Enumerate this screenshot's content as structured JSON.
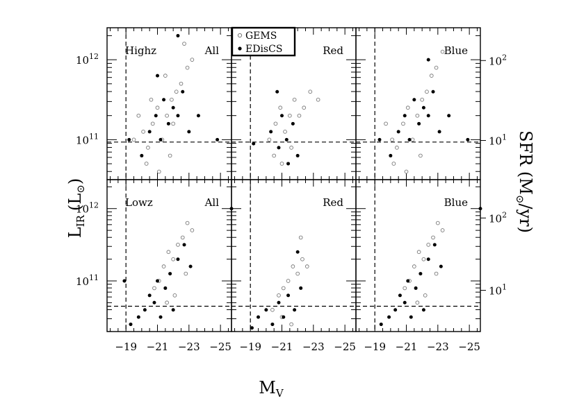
{
  "figure": {
    "xlabel_main": "M",
    "xlabel_sub": "V",
    "ylabel_left_main": "L",
    "ylabel_left_sub": "IR",
    "ylabel_left_unit": "(L",
    "ylabel_left_unit_close": ")",
    "ylabel_right_main": "SFR (M",
    "ylabel_right_unit_close": "/yr)",
    "x_tick_labels": [
      "−19",
      "−21",
      "−23",
      "−25"
    ],
    "y_left_exp_labels": [
      "12",
      "11"
    ],
    "y_left_base": "10",
    "y_right_exp_labels": [
      "2",
      "1"
    ],
    "y_right_base": "10",
    "legend": {
      "items": [
        {
          "label": "GEMS",
          "marker": "open-circle"
        },
        {
          "label": "EDisCS",
          "marker": "filled-circle"
        }
      ]
    },
    "colors": {
      "gems": "#777777",
      "ediscs": "#000000"
    }
  },
  "chart_data": [
    {
      "type": "scatter",
      "panel": "highz-all",
      "sample_label": "Highz",
      "color_label": "All",
      "xlabel": "M_V",
      "ylabel": "L_IR (L_sun)",
      "xlim": [
        -17.8,
        -25.7
      ],
      "ylim_log10": [
        10.5,
        12.4
      ],
      "xline": -19,
      "yline_log10": 10.97,
      "series": [
        {
          "name": "GEMS",
          "marker": "open",
          "points": [
            [
              -19.8,
              11.3
            ],
            [
              -20.1,
              11.1
            ],
            [
              -20.4,
              10.9
            ],
            [
              -20.7,
              11.2
            ],
            [
              -21.0,
              11.4
            ],
            [
              -21.3,
              11.0
            ],
            [
              -21.6,
              11.3
            ],
            [
              -21.9,
              11.5
            ],
            [
              -22.2,
              11.6
            ],
            [
              -22.5,
              11.7
            ],
            [
              -22.9,
              11.9
            ],
            [
              -23.2,
              12.0
            ],
            [
              -20.3,
              10.7
            ],
            [
              -21.1,
              10.6
            ],
            [
              -21.8,
              10.8
            ],
            [
              -20.6,
              11.5
            ],
            [
              -21.5,
              11.8
            ],
            [
              -22.0,
              11.2
            ],
            [
              -19.5,
              11.0
            ],
            [
              -22.7,
              12.2
            ]
          ]
        },
        {
          "name": "EDisCS",
          "marker": "filled",
          "points": [
            [
              -19.2,
              11.0
            ],
            [
              -20.0,
              10.8
            ],
            [
              -20.5,
              11.1
            ],
            [
              -20.9,
              11.3
            ],
            [
              -21.2,
              11.0
            ],
            [
              -21.4,
              11.5
            ],
            [
              -21.7,
              11.2
            ],
            [
              -22.0,
              11.4
            ],
            [
              -22.3,
              11.3
            ],
            [
              -22.6,
              11.6
            ],
            [
              -23.0,
              11.1
            ],
            [
              -23.6,
              11.3
            ],
            [
              -24.8,
              11.0
            ],
            [
              -21.0,
              11.8
            ],
            [
              -22.3,
              12.3
            ]
          ]
        }
      ]
    },
    {
      "type": "scatter",
      "panel": "highz-red",
      "sample_label": "",
      "color_label": "Red",
      "xlabel": "M_V",
      "ylabel": "L_IR (L_sun)",
      "xlim": [
        -17.8,
        -25.7
      ],
      "ylim_log10": [
        10.5,
        12.4
      ],
      "xline": -19,
      "yline_log10": 10.97,
      "series": [
        {
          "name": "GEMS",
          "marker": "open",
          "points": [
            [
              -20.2,
              11.0
            ],
            [
              -20.6,
              11.2
            ],
            [
              -20.9,
              11.4
            ],
            [
              -21.2,
              11.1
            ],
            [
              -21.5,
              11.3
            ],
            [
              -21.8,
              11.5
            ],
            [
              -22.1,
              11.3
            ],
            [
              -22.4,
              11.4
            ],
            [
              -22.8,
              11.6
            ],
            [
              -23.3,
              11.5
            ],
            [
              -20.5,
              10.8
            ],
            [
              -21.0,
              10.7
            ],
            [
              -21.6,
              10.9
            ]
          ]
        },
        {
          "name": "EDisCS",
          "marker": "filled",
          "points": [
            [
              -20.3,
              11.1
            ],
            [
              -20.8,
              10.9
            ],
            [
              -21.0,
              11.3
            ],
            [
              -21.3,
              11.0
            ],
            [
              -21.7,
              11.2
            ],
            [
              -22.0,
              10.8
            ],
            [
              -20.7,
              11.6
            ],
            [
              -21.4,
              10.7
            ],
            [
              -19.2,
              10.95
            ]
          ]
        }
      ]
    },
    {
      "type": "scatter",
      "panel": "highz-blue",
      "sample_label": "",
      "color_label": "Blue",
      "xlabel": "M_V",
      "ylabel": "L_IR (L_sun)",
      "xlim": [
        -17.8,
        -25.7
      ],
      "ylim_log10": [
        10.5,
        12.4
      ],
      "xline": -19,
      "yline_log10": 10.97,
      "series": [
        {
          "name": "GEMS",
          "marker": "open",
          "points": [
            [
              -19.7,
              11.2
            ],
            [
              -20.1,
              11.0
            ],
            [
              -20.4,
              10.9
            ],
            [
              -20.8,
              11.2
            ],
            [
              -21.1,
              11.4
            ],
            [
              -21.4,
              11.0
            ],
            [
              -21.7,
              11.3
            ],
            [
              -22.0,
              11.5
            ],
            [
              -22.3,
              11.6
            ],
            [
              -22.6,
              11.8
            ],
            [
              -22.9,
              11.9
            ],
            [
              -23.3,
              12.1
            ],
            [
              -20.2,
              10.7
            ],
            [
              -21.0,
              10.6
            ],
            [
              -21.9,
              10.8
            ]
          ]
        },
        {
          "name": "EDisCS",
          "marker": "filled",
          "points": [
            [
              -19.3,
              11.0
            ],
            [
              -20.0,
              10.8
            ],
            [
              -20.5,
              11.1
            ],
            [
              -20.9,
              11.3
            ],
            [
              -21.2,
              11.0
            ],
            [
              -21.5,
              11.5
            ],
            [
              -21.8,
              11.2
            ],
            [
              -22.1,
              11.4
            ],
            [
              -22.4,
              11.3
            ],
            [
              -22.7,
              11.6
            ],
            [
              -23.1,
              11.1
            ],
            [
              -23.7,
              11.3
            ],
            [
              -24.9,
              11.0
            ],
            [
              -22.4,
              12.0
            ]
          ]
        }
      ]
    },
    {
      "type": "scatter",
      "panel": "lowz-all",
      "sample_label": "Lowz",
      "color_label": "All",
      "xlabel": "M_V",
      "ylabel": "L_IR (L_sun)",
      "xlim": [
        -17.8,
        -25.7
      ],
      "ylim_log10": [
        10.3,
        12.4
      ],
      "xline": -19,
      "yline_log10": 10.65,
      "series": [
        {
          "name": "GEMS",
          "marker": "open",
          "points": [
            [
              -20.8,
              10.9
            ],
            [
              -21.1,
              11.0
            ],
            [
              -21.4,
              11.2
            ],
            [
              -21.7,
              11.4
            ],
            [
              -22.0,
              11.3
            ],
            [
              -22.3,
              11.5
            ],
            [
              -22.6,
              11.6
            ],
            [
              -22.9,
              11.8
            ],
            [
              -23.2,
              11.7
            ],
            [
              -21.6,
              10.7
            ],
            [
              -22.1,
              10.8
            ],
            [
              -22.8,
              11.1
            ]
          ]
        },
        {
          "name": "EDisCS",
          "marker": "filled",
          "points": [
            [
              -19.3,
              10.4
            ],
            [
              -19.8,
              10.5
            ],
            [
              -20.2,
              10.6
            ],
            [
              -20.5,
              10.8
            ],
            [
              -20.8,
              10.7
            ],
            [
              -21.0,
              11.0
            ],
            [
              -21.2,
              10.5
            ],
            [
              -21.5,
              10.9
            ],
            [
              -21.8,
              11.1
            ],
            [
              -22.0,
              10.6
            ],
            [
              -22.3,
              11.3
            ],
            [
              -22.7,
              11.5
            ],
            [
              -23.1,
              11.2
            ],
            [
              -18.9,
              11.0
            ],
            [
              -25.7,
              12.0
            ]
          ]
        }
      ]
    },
    {
      "type": "scatter",
      "panel": "lowz-red",
      "sample_label": "",
      "color_label": "Red",
      "xlabel": "M_V",
      "ylabel": "L_IR (L_sun)",
      "xlim": [
        -17.8,
        -25.7
      ],
      "ylim_log10": [
        10.3,
        12.4
      ],
      "xline": -19,
      "yline_log10": 10.65,
      "series": [
        {
          "name": "GEMS",
          "marker": "open",
          "points": [
            [
              -20.4,
              10.6
            ],
            [
              -20.8,
              10.8
            ],
            [
              -21.1,
              10.9
            ],
            [
              -21.4,
              11.0
            ],
            [
              -21.7,
              11.2
            ],
            [
              -22.0,
              11.1
            ],
            [
              -22.3,
              11.3
            ],
            [
              -22.6,
              11.2
            ],
            [
              -22.2,
              11.6
            ],
            [
              -21.0,
              10.5
            ],
            [
              -21.6,
              10.4
            ]
          ]
        },
        {
          "name": "EDisCS",
          "marker": "filled",
          "points": [
            [
              -19.1,
              10.35
            ],
            [
              -19.5,
              10.5
            ],
            [
              -20.0,
              10.6
            ],
            [
              -20.4,
              10.4
            ],
            [
              -20.8,
              10.7
            ],
            [
              -21.1,
              10.5
            ],
            [
              -21.4,
              10.8
            ],
            [
              -21.8,
              10.6
            ],
            [
              -22.0,
              11.4
            ],
            [
              -22.2,
              10.9
            ]
          ]
        }
      ]
    },
    {
      "type": "scatter",
      "panel": "lowz-blue",
      "sample_label": "",
      "color_label": "Blue",
      "xlabel": "M_V",
      "ylabel": "L_IR (L_sun)",
      "xlim": [
        -17.8,
        -25.7
      ],
      "ylim_log10": [
        10.3,
        12.4
      ],
      "xline": -19,
      "yline_log10": 10.65,
      "series": [
        {
          "name": "GEMS",
          "marker": "open",
          "points": [
            [
              -20.9,
              10.9
            ],
            [
              -21.2,
              11.0
            ],
            [
              -21.5,
              11.2
            ],
            [
              -21.8,
              11.4
            ],
            [
              -22.1,
              11.3
            ],
            [
              -22.4,
              11.5
            ],
            [
              -22.7,
              11.6
            ],
            [
              -23.0,
              11.8
            ],
            [
              -23.3,
              11.7
            ],
            [
              -21.7,
              10.7
            ],
            [
              -22.2,
              10.8
            ],
            [
              -22.9,
              11.1
            ]
          ]
        },
        {
          "name": "EDisCS",
          "marker": "filled",
          "points": [
            [
              -19.4,
              10.4
            ],
            [
              -19.9,
              10.5
            ],
            [
              -20.3,
              10.6
            ],
            [
              -20.6,
              10.8
            ],
            [
              -20.9,
              10.7
            ],
            [
              -21.1,
              11.0
            ],
            [
              -21.3,
              10.5
            ],
            [
              -21.6,
              10.9
            ],
            [
              -21.9,
              11.1
            ],
            [
              -22.1,
              10.6
            ],
            [
              -22.4,
              11.3
            ],
            [
              -22.8,
              11.5
            ],
            [
              -23.2,
              11.2
            ],
            [
              -25.7,
              12.0
            ]
          ]
        }
      ]
    }
  ]
}
